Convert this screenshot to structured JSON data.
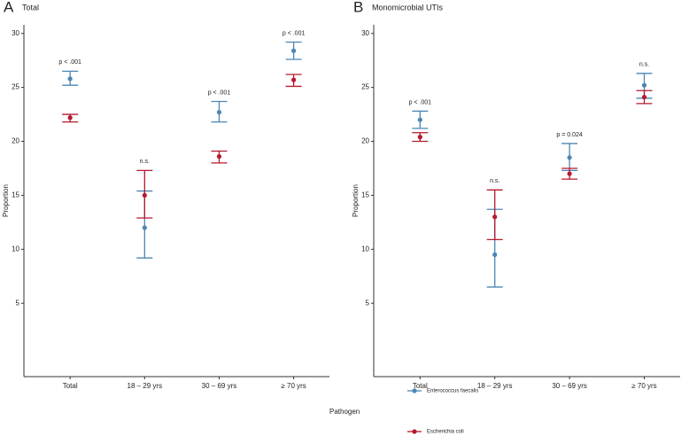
{
  "chart_data": [
    {
      "type": "errorbar",
      "panel_label": "A",
      "title": "Total",
      "y_label": "Proportion",
      "categories": [
        "Total",
        "18 – 29 yrs",
        "30 – 69 yrs",
        "≥ 70 yrs"
      ],
      "ylim": [
        -1.8,
        30.8
      ],
      "yticks": [
        5,
        10,
        15,
        20,
        25,
        30
      ],
      "legend_title": "Pathogen",
      "series": [
        {
          "name": "Enterococcus faecalis",
          "color": "#4b86b4",
          "values": [
            25.8,
            12.0,
            22.7,
            28.4
          ],
          "lower": [
            25.2,
            9.2,
            21.8,
            27.6
          ],
          "upper": [
            26.5,
            15.4,
            23.7,
            29.2
          ]
        },
        {
          "name": "Escherichia coli",
          "color": "#b5192d",
          "values": [
            22.2,
            15.0,
            18.6,
            25.7
          ],
          "lower": [
            21.8,
            12.9,
            18.0,
            25.1
          ],
          "upper": [
            22.5,
            17.3,
            19.1,
            26.2
          ]
        }
      ],
      "annotations": [
        "p < .001",
        "n.s.",
        "p < .001",
        "p < .001"
      ]
    },
    {
      "type": "errorbar",
      "panel_label": "B",
      "title": "Monomicrobial UTIs",
      "y_label": "Proportion",
      "categories": [
        "Total",
        "18 – 29 yrs",
        "30 – 69 yrs",
        "≥ 70 yrs"
      ],
      "ylim": [
        -1.8,
        30.8
      ],
      "yticks": [
        5,
        10,
        15,
        20,
        25,
        30
      ],
      "series": [
        {
          "color": "#4b86b4",
          "values": [
            22.0,
            9.5,
            18.5,
            25.2
          ],
          "lower": [
            21.2,
            6.5,
            17.3,
            24.0
          ],
          "upper": [
            22.8,
            13.7,
            19.8,
            26.3
          ]
        },
        {
          "color": "#b5192d",
          "values": [
            20.4,
            13.0,
            17.0,
            24.1
          ],
          "lower": [
            20.0,
            10.9,
            16.5,
            23.5
          ],
          "upper": [
            20.8,
            15.5,
            17.5,
            24.7
          ]
        }
      ],
      "annotations": [
        "p < .001",
        "n.s.",
        "p = 0.024",
        "n.s."
      ]
    }
  ]
}
